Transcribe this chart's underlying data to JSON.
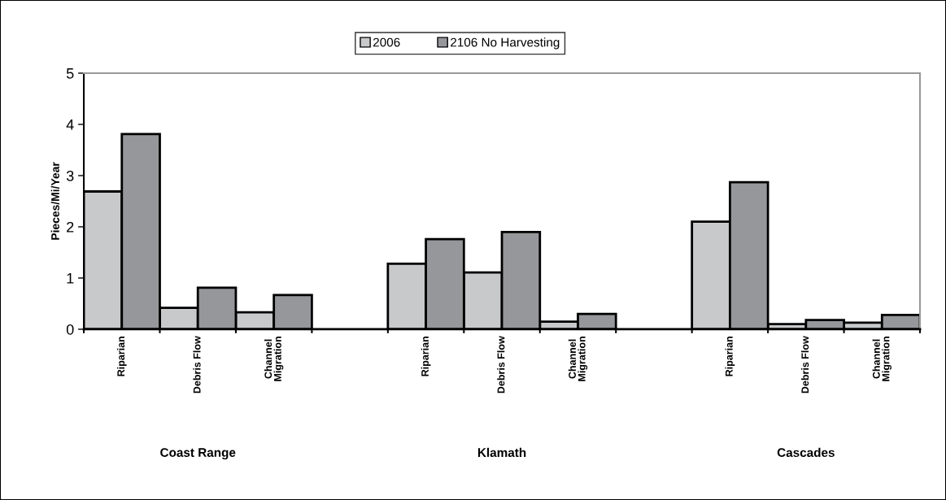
{
  "chart_data": {
    "type": "bar",
    "ylabel": "Pieces/Mi/Year",
    "categories": [
      "Riparian",
      "Debris Flow",
      "Channel\nMigration",
      null,
      "Riparian",
      "Debris Flow",
      "Channel\nMigration",
      null,
      "Riparian",
      "Debris Flow",
      "Channel\nMigration"
    ],
    "series": [
      {
        "name": "2006",
        "color": "#c8c9cb",
        "values": [
          2.69,
          0.42,
          0.33,
          null,
          1.28,
          1.11,
          0.15,
          null,
          2.1,
          0.1,
          0.13
        ]
      },
      {
        "name": "2106 No Harvesting",
        "color": "#96979b",
        "values": [
          3.81,
          0.81,
          0.67,
          null,
          1.76,
          1.9,
          0.3,
          null,
          2.87,
          0.18,
          0.28
        ]
      }
    ],
    "annotations": [
      "Coast Range",
      "Klamath",
      "Cascades"
    ],
    "ylim": [
      0,
      5
    ],
    "yticks": [
      0,
      1,
      2,
      3,
      4,
      5
    ],
    "grid": false,
    "legend": "top"
  }
}
